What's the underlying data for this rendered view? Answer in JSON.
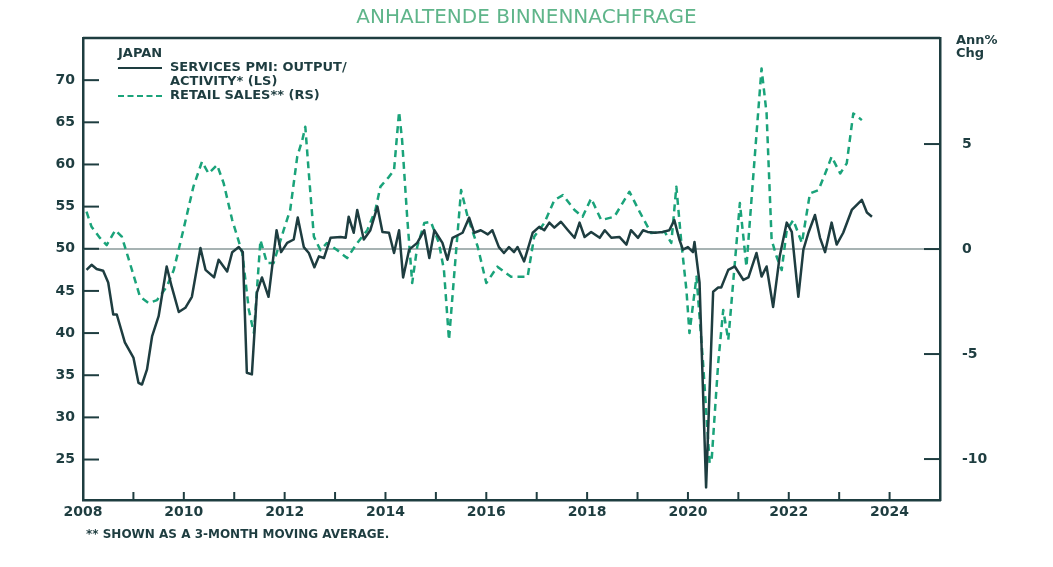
{
  "chart_data": {
    "type": "line",
    "title": "ANHALTENDE BINNENNACHFRAGE",
    "legend_title": "JAPAN",
    "y2label": "Ann% Chg",
    "legend": "top left",
    "grid": false,
    "marker": "none",
    "xlim": [
      2008,
      2025
    ],
    "xticks": [
      2008,
      {
        "value": 2009,
        "label": null
      },
      2010,
      {
        "value": 2011,
        "label": null
      },
      2012,
      {
        "value": 2013,
        "label": null
      },
      2014,
      {
        "value": 2015,
        "label": null
      },
      2016,
      {
        "value": 2017,
        "label": null
      },
      2018,
      {
        "value": 2019,
        "label": null
      },
      2020,
      {
        "value": 2021,
        "label": null
      },
      2022,
      {
        "value": 2023,
        "label": null
      },
      2024
    ],
    "ylim": [
      20.2,
      75
    ],
    "yticks": [
      25,
      30,
      35,
      40,
      45,
      50,
      55,
      60,
      65,
      70
    ],
    "y2lim": [
      -11.95,
      10.05
    ],
    "y2ticks": [
      -10,
      -5,
      0,
      5
    ],
    "ref_lines": [
      {
        "axis": "y2",
        "value": 0,
        "color": "#8a9a9a"
      }
    ],
    "annotations": [
      "** SHOWN AS A 3-MONTH MOVING AVERAGE."
    ],
    "series": [
      {
        "name": "SERVICES PMI: OUTPUT/ ACTIVITY* (LS)",
        "color": "#1e3d40",
        "line_style": "solid",
        "axis": "y",
        "x": [
          2008.07,
          2008.17,
          2008.27,
          2008.4,
          2008.5,
          2008.6,
          2008.67,
          2008.83,
          2009.0,
          2009.1,
          2009.17,
          2009.27,
          2009.37,
          2009.5,
          2009.66,
          2009.76,
          2009.9,
          2010.03,
          2010.16,
          2010.33,
          2010.43,
          2010.6,
          2010.69,
          2010.86,
          2010.96,
          2011.09,
          2011.17,
          2011.25,
          2011.35,
          2011.45,
          2011.55,
          2011.68,
          2011.84,
          2011.93,
          2012.05,
          2012.18,
          2012.26,
          2012.38,
          2012.48,
          2012.59,
          2012.68,
          2012.78,
          2012.91,
          2013.11,
          2013.21,
          2013.27,
          2013.37,
          2013.44,
          2013.57,
          2013.7,
          2013.84,
          2013.94,
          2014.07,
          2014.17,
          2014.27,
          2014.35,
          2014.47,
          2014.63,
          2014.77,
          2014.87,
          2014.97,
          2015.13,
          2015.23,
          2015.33,
          2015.53,
          2015.66,
          2015.76,
          2015.89,
          2016.03,
          2016.12,
          2016.25,
          2016.35,
          2016.45,
          2016.55,
          2016.62,
          2016.75,
          2016.92,
          2017.05,
          2017.15,
          2017.25,
          2017.35,
          2017.48,
          2017.62,
          2017.75,
          2017.85,
          2017.95,
          2018.08,
          2018.25,
          2018.35,
          2018.48,
          2018.64,
          2018.78,
          2018.87,
          2019.01,
          2019.11,
          2019.2,
          2019.34,
          2019.5,
          2019.63,
          2019.73,
          2019.83,
          2019.9,
          2020.0,
          2020.1,
          2020.13,
          2020.23,
          2020.36,
          2020.5,
          2020.6,
          2020.66,
          2020.8,
          2020.93,
          2021.1,
          2021.2,
          2021.36,
          2021.46,
          2021.56,
          2021.69,
          2021.82,
          2021.96,
          2022.06,
          2022.19,
          2022.29,
          2022.39,
          2022.52,
          2022.62,
          2022.72,
          2022.85,
          2022.95,
          2023.08,
          2023.25,
          2023.45,
          2023.55,
          2023.65
        ],
        "values": [
          47.5,
          48.1,
          47.6,
          47.4,
          46,
          42.2,
          42.2,
          38.9,
          37.1,
          34.1,
          33.9,
          35.7,
          39.6,
          42,
          47.9,
          45.5,
          42.5,
          43,
          44.3,
          50.1,
          47.5,
          46.6,
          48.7,
          47.3,
          49.6,
          50.2,
          49.6,
          35.3,
          35.1,
          44.8,
          46.6,
          44.3,
          52.2,
          49.6,
          50.7,
          51.1,
          53.7,
          50.2,
          49.5,
          47.8,
          49.1,
          48.9,
          51.3,
          51.4,
          51.3,
          53.8,
          51.9,
          54.6,
          51.1,
          52.2,
          55,
          52,
          51.9,
          49.5,
          52.2,
          46.6,
          49.9,
          50.7,
          52.2,
          48.9,
          52.2,
          50.7,
          48.7,
          51.3,
          51.9,
          53.7,
          51.9,
          52.2,
          51.7,
          52.2,
          50.2,
          49.5,
          50.2,
          49.6,
          50.2,
          48.5,
          51.9,
          52.6,
          52.2,
          53.1,
          52.5,
          53.2,
          52.2,
          51.3,
          53.1,
          51.4,
          52,
          51.3,
          52.2,
          51.3,
          51.4,
          50.5,
          52.2,
          51.3,
          52.2,
          52,
          51.9,
          52,
          52.2,
          53.4,
          51.1,
          49.9,
          50.2,
          49.6,
          50.8,
          46,
          21.7,
          44.9,
          45.4,
          45.4,
          47.5,
          47.9,
          46.3,
          46.6,
          49.5,
          46.7,
          47.9,
          43.1,
          49.1,
          53.1,
          52,
          44.3,
          49.9,
          51.9,
          54,
          51.3,
          49.6,
          53.1,
          50.5,
          51.9,
          54.6,
          55.8,
          54.3,
          53.8
        ]
      },
      {
        "name": "RETAIL SALES** (RS)",
        "color": "#1aa37a",
        "line_style": "dashed",
        "axis": "y2",
        "x": [
          2008.07,
          2008.17,
          2008.34,
          2008.47,
          2008.64,
          2008.77,
          2008.93,
          2009.13,
          2009.3,
          2009.47,
          2009.66,
          2009.8,
          2009.99,
          2010.19,
          2010.36,
          2010.49,
          2010.66,
          2010.79,
          2010.96,
          2011.16,
          2011.29,
          2011.39,
          2011.52,
          2011.65,
          2011.78,
          2011.98,
          2012.11,
          2012.25,
          2012.35,
          2012.41,
          2012.48,
          2012.58,
          2012.71,
          2012.84,
          2013.04,
          2013.24,
          2013.44,
          2013.64,
          2013.8,
          2013.9,
          2014.07,
          2014.17,
          2014.27,
          2014.33,
          2014.43,
          2014.53,
          2014.63,
          2014.77,
          2014.9,
          2015.06,
          2015.16,
          2015.26,
          2015.36,
          2015.5,
          2015.63,
          2015.83,
          2016.0,
          2016.22,
          2016.49,
          2016.82,
          2016.95,
          2017.15,
          2017.35,
          2017.52,
          2017.75,
          2017.91,
          2018.08,
          2018.28,
          2018.54,
          2018.84,
          2019.04,
          2019.27,
          2019.54,
          2019.67,
          2019.77,
          2019.87,
          2019.97,
          2020.03,
          2020.17,
          2020.3,
          2020.43,
          2020.47,
          2020.6,
          2020.7,
          2020.8,
          2020.93,
          2021.03,
          2021.16,
          2021.29,
          2021.46,
          2021.56,
          2021.66,
          2021.76,
          2021.86,
          2021.96,
          2022.09,
          2022.26,
          2022.42,
          2022.59,
          2022.75,
          2022.85,
          2023.02,
          2023.15,
          2023.28,
          2023.45
        ],
        "values": [
          1.78,
          1.06,
          0.52,
          0.19,
          0.9,
          0.59,
          -0.67,
          -2.27,
          -2.57,
          -2.43,
          -1.8,
          -1,
          0.9,
          2.97,
          4.16,
          3.6,
          4,
          3.14,
          1.38,
          -0.19,
          -2.9,
          -4,
          0.43,
          -0.67,
          -0.67,
          0.9,
          1.86,
          4.4,
          5.19,
          5.82,
          3.6,
          0.59,
          -0.05,
          0.29,
          -0.05,
          -0.43,
          0.29,
          0.9,
          1.86,
          2.97,
          3.44,
          3.76,
          6.54,
          5.19,
          1.54,
          -1.62,
          0.11,
          1.24,
          1.3,
          0.29,
          -1,
          -4.33,
          -1.32,
          2.81,
          1.54,
          0.11,
          -1.62,
          -0.84,
          -1.32,
          -1.32,
          0.59,
          1.24,
          2.33,
          2.57,
          1.86,
          1.54,
          2.41,
          1.38,
          1.54,
          2.73,
          1.78,
          0.76,
          0.82,
          0.29,
          2.97,
          0.29,
          -1.95,
          -4,
          -1.32,
          -5.43,
          -10.19,
          -10.05,
          -5.43,
          -2.9,
          -4.33,
          -0.67,
          2.19,
          -0.84,
          3.29,
          8.6,
          6.46,
          0.43,
          -0.37,
          -1,
          0.9,
          1.38,
          0.29,
          2.65,
          2.81,
          3.76,
          4.4,
          3.6,
          4.08,
          6.46,
          6.14
        ]
      }
    ]
  }
}
